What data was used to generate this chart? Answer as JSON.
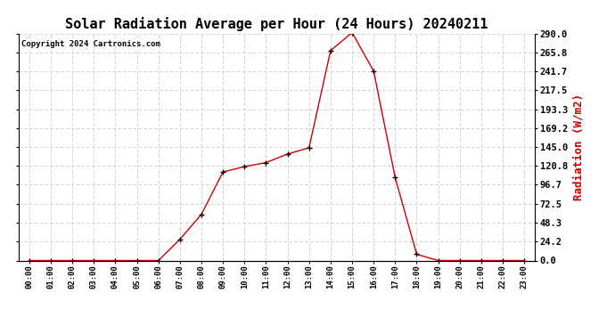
{
  "title": "Solar Radiation Average per Hour (24 Hours) 20240211",
  "copyright_text": "Copyright 2024 Cartronics.com",
  "ylabel": "Radiation (W/m2)",
  "hours": [
    "00:00",
    "01:00",
    "02:00",
    "03:00",
    "04:00",
    "05:00",
    "06:00",
    "07:00",
    "08:00",
    "09:00",
    "10:00",
    "11:00",
    "12:00",
    "13:00",
    "14:00",
    "15:00",
    "16:00",
    "17:00",
    "18:00",
    "19:00",
    "20:00",
    "21:00",
    "22:00",
    "23:00"
  ],
  "values": [
    0.0,
    0.0,
    0.0,
    0.0,
    0.0,
    0.0,
    0.0,
    27.0,
    59.0,
    113.0,
    120.0,
    125.0,
    136.0,
    144.0,
    268.0,
    291.0,
    242.0,
    106.0,
    8.0,
    0.0,
    0.0,
    0.0,
    0.0,
    0.0
  ],
  "line_color": "#cc0000",
  "marker_color": "#000000",
  "background_color": "#ffffff",
  "grid_color": "#c8c8c8",
  "title_fontsize": 11,
  "axis_label_color": "#cc0000",
  "copyright_color": "#000000",
  "ytick_labels": [
    "0.0",
    "24.2",
    "48.3",
    "72.5",
    "96.7",
    "120.8",
    "145.0",
    "169.2",
    "193.3",
    "217.5",
    "241.7",
    "265.8",
    "290.0"
  ],
  "ytick_values": [
    0.0,
    24.2,
    48.3,
    72.5,
    96.7,
    120.8,
    145.0,
    169.2,
    193.3,
    217.5,
    241.7,
    265.8,
    290.0
  ],
  "ylim": [
    0.0,
    290.0
  ]
}
